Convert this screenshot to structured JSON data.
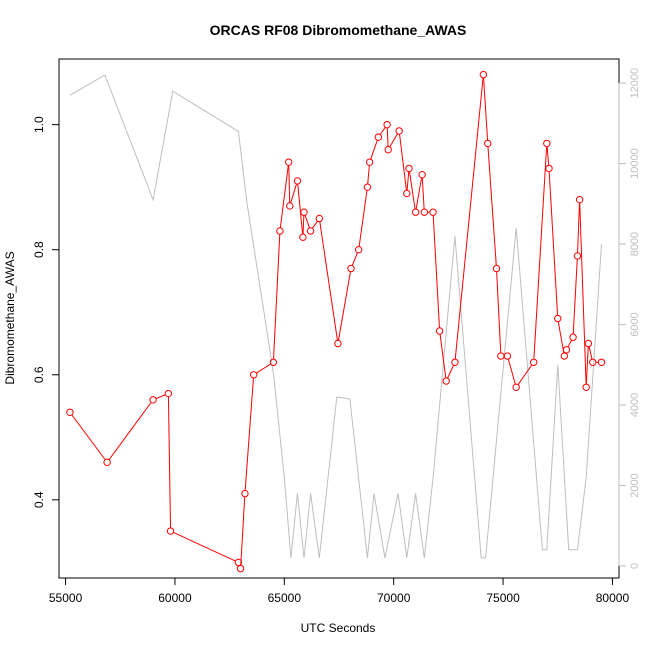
{
  "chart_data": {
    "type": "line",
    "title": "ORCAS RF08 Dibromomethane_AWAS",
    "xlabel": "UTC Seconds",
    "ylabel": "Dibromomethane_AWAS",
    "xlim": [
      54700,
      80300
    ],
    "ylim": [
      0.275,
      1.105
    ],
    "y2lim": [
      -300,
      12600
    ],
    "x_ticks": [
      55000,
      60000,
      65000,
      70000,
      75000,
      80000
    ],
    "y_ticks": [
      0.4,
      0.6,
      0.8,
      1.0
    ],
    "y2_ticks": [
      0,
      2000,
      4000,
      6000,
      8000,
      10000,
      12000
    ],
    "grid": false,
    "colors": {
      "primary": "#ff0000",
      "secondary": "#bebebe",
      "axis": "#000000",
      "axis2": "#bebebe"
    },
    "series": [
      {
        "axis": "left",
        "marker": "open-circle",
        "x": [
          55200,
          56900,
          59000,
          59700,
          59800,
          62900,
          63000,
          63200,
          63600,
          64500,
          64800,
          65200,
          65250,
          65600,
          65850,
          65900,
          66200,
          66600,
          67450,
          68050,
          68400,
          68800,
          68900,
          69300,
          69700,
          69750,
          70250,
          70600,
          70700,
          71000,
          71300,
          71400,
          71800,
          72100,
          72400,
          72800,
          74100,
          74300,
          74700,
          74900,
          75200,
          75600,
          76400,
          77000,
          77100,
          77500,
          77800,
          77900,
          78200,
          78400,
          78500,
          78800,
          78900,
          79100,
          79500
        ],
        "y": [
          0.54,
          0.46,
          0.56,
          0.57,
          0.35,
          0.3,
          0.29,
          0.41,
          0.6,
          0.62,
          0.83,
          0.94,
          0.87,
          0.91,
          0.82,
          0.86,
          0.83,
          0.85,
          0.65,
          0.77,
          0.8,
          0.9,
          0.94,
          0.98,
          1.0,
          0.96,
          0.99,
          0.89,
          0.93,
          0.86,
          0.92,
          0.86,
          0.86,
          0.67,
          0.59,
          0.62,
          1.08,
          0.97,
          0.77,
          0.63,
          0.63,
          0.58,
          0.62,
          0.97,
          0.93,
          0.69,
          0.63,
          0.64,
          0.66,
          0.79,
          0.88,
          0.58,
          0.65,
          0.62,
          0.62
        ]
      },
      {
        "axis": "right",
        "marker": "none",
        "x": [
          55200,
          56800,
          59000,
          59900,
          62900,
          63300,
          64500,
          65000,
          65300,
          65600,
          65900,
          66200,
          66600,
          67400,
          68000,
          68800,
          69100,
          69600,
          70200,
          70600,
          71000,
          71400,
          71800,
          72800,
          74000,
          74200,
          75600,
          76800,
          77000,
          77500,
          78000,
          78400,
          78800,
          79500
        ],
        "y": [
          11700,
          12200,
          9100,
          11800,
          10800,
          9000,
          4800,
          2200,
          200,
          1800,
          200,
          1800,
          200,
          4200,
          4150,
          200,
          1800,
          200,
          1800,
          200,
          1800,
          200,
          2200,
          8200,
          200,
          200,
          8400,
          400,
          400,
          5000,
          400,
          400,
          2200,
          8000
        ]
      }
    ]
  }
}
